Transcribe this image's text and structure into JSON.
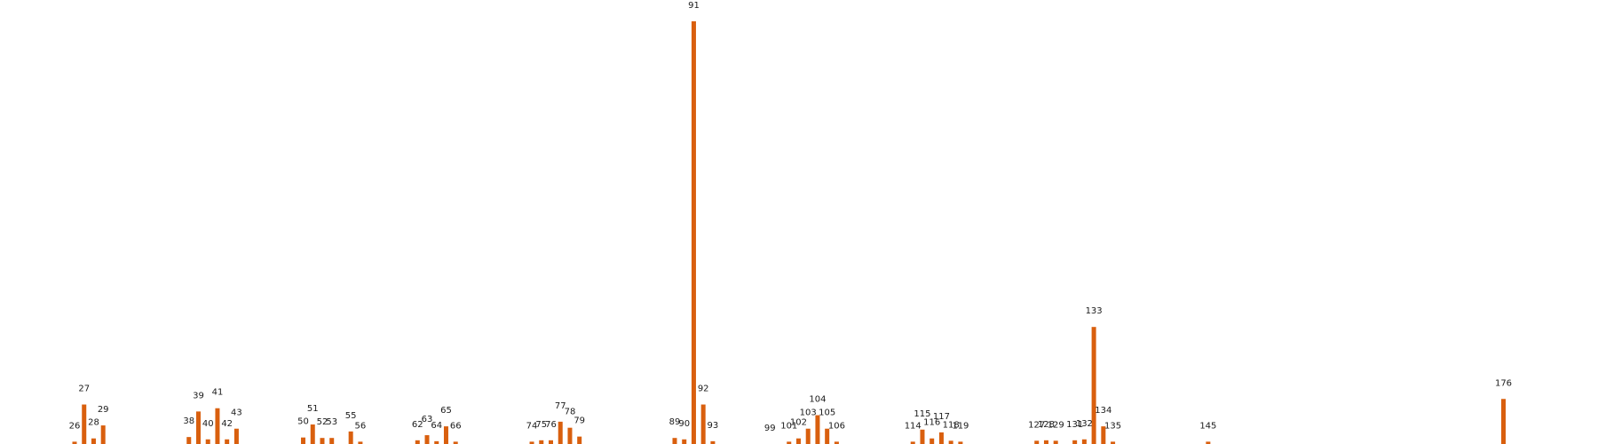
{
  "chart_data": {
    "type": "bar",
    "title": "",
    "xlabel": "",
    "ylabel": "",
    "grid": false,
    "legend": "none",
    "bar_color": "#d95f0e",
    "label_color": "#1a1a1a",
    "categories": [
      26,
      27,
      28,
      29,
      38,
      39,
      40,
      41,
      42,
      43,
      50,
      51,
      52,
      53,
      55,
      56,
      62,
      63,
      64,
      65,
      66,
      74,
      75,
      76,
      77,
      78,
      79,
      89,
      90,
      91,
      92,
      93,
      99,
      101,
      102,
      103,
      104,
      105,
      106,
      114,
      115,
      116,
      117,
      118,
      119,
      127,
      128,
      129,
      131,
      132,
      133,
      134,
      135,
      145,
      176
    ],
    "values": [
      0.5,
      8.5,
      1.2,
      4,
      1.5,
      7,
      1,
      7.7,
      1,
      3.3,
      1.4,
      4.2,
      1.3,
      1.3,
      2.7,
      0.5,
      0.8,
      1.9,
      0.6,
      3.8,
      0.5,
      0.5,
      0.8,
      0.8,
      4.8,
      3.5,
      1.6,
      1.3,
      1,
      91,
      8.5,
      0.6,
      0,
      0.5,
      1.2,
      3.3,
      6.2,
      3.3,
      0.5,
      0.5,
      3.1,
      1.2,
      2.5,
      0.7,
      0.5,
      0.7,
      0.8,
      0.7,
      0.8,
      1,
      25.2,
      3.8,
      0.5,
      0.5,
      9.7
    ],
    "ylim": [
      0,
      91
    ]
  }
}
